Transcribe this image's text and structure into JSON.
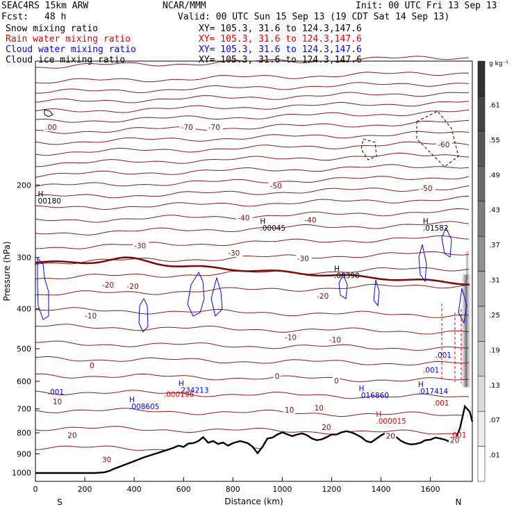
{
  "header": {
    "model": "SEAC4RS 15km ARW",
    "org": "NCAR/MMM",
    "init": "Init: 00 UTC Fri 13 Sep 13",
    "fcst_label": "Fcst:",
    "fcst_value": "48 h",
    "valid": "Valid: 00 UTC Sun 15 Sep 13 (19 CDT Sat 14 Sep 13)",
    "lines": [
      {
        "name": "Snow mixing ratio",
        "xy": "XY= 105.3, 31.6 to 124.3,147.6",
        "color": "#000000"
      },
      {
        "name": "Rain water mixing ratio",
        "xy": "XY= 105.3, 31.6 to 124.3,147.6",
        "color": "#e00000"
      },
      {
        "name": "Cloud water mixing ratio",
        "xy": "XY= 105.3, 31.6 to 124.3,147.6",
        "color": "#0000ee"
      },
      {
        "name": "Cloud ice mixing ratio",
        "xy": "XY= 105.3, 31.6 to 124.3,147.6",
        "color": "#000000"
      }
    ]
  },
  "chart_data": {
    "type": "cross-section",
    "xlabel": "Distance (km)",
    "ylabel": "Pressure (hPa)",
    "xlim": [
      0,
      1770
    ],
    "ylim": [
      1050,
      100
    ],
    "y_scale": "log-pressure",
    "x_ticks": [
      0,
      200,
      400,
      600,
      800,
      1000,
      1200,
      1400,
      1600
    ],
    "y_ticks": [
      200,
      300,
      400,
      500,
      600,
      700,
      800,
      900,
      1000
    ],
    "x_end_labels": {
      "left": "S",
      "right": "N"
    },
    "colorbar": {
      "unit": "g kg⁻¹",
      "ticks": [
        ".01",
        ".07",
        ".13",
        ".19",
        ".25",
        ".31",
        ".37",
        ".43",
        ".49",
        ".55",
        ".61"
      ]
    },
    "temperature_labels": [
      {
        "text": ".00",
        "x": 40,
        "p": 147
      },
      {
        "text": "-70",
        "x": 590,
        "p": 147
      },
      {
        "text": "-70",
        "x": 700,
        "p": 147
      },
      {
        "text": "-60",
        "x": 1630,
        "p": 162
      },
      {
        "text": "-50",
        "x": 950,
        "p": 204
      },
      {
        "text": "-50",
        "x": 1560,
        "p": 207
      },
      {
        "text": "-40",
        "x": 820,
        "p": 244
      },
      {
        "text": "-40",
        "x": 1090,
        "p": 247
      },
      {
        "text": "-30",
        "x": 400,
        "p": 285
      },
      {
        "text": "-30",
        "x": 780,
        "p": 297
      },
      {
        "text": "-30",
        "x": 1060,
        "p": 306
      },
      {
        "text": "-20",
        "x": 270,
        "p": 355
      },
      {
        "text": "-20",
        "x": 370,
        "p": 358
      },
      {
        "text": "-20",
        "x": 1140,
        "p": 378
      },
      {
        "text": "-10",
        "x": 200,
        "p": 422
      },
      {
        "text": "-10",
        "x": 1010,
        "p": 476
      },
      {
        "text": "-10",
        "x": 1190,
        "p": 483
      },
      {
        "text": "0",
        "x": 220,
        "p": 557
      },
      {
        "text": "0",
        "x": 970,
        "p": 592
      },
      {
        "text": "0",
        "x": 1210,
        "p": 607
      },
      {
        "text": "10",
        "x": 70,
        "p": 682
      },
      {
        "text": "10",
        "x": 1010,
        "p": 714
      },
      {
        "text": "10",
        "x": 1130,
        "p": 707
      },
      {
        "text": "20",
        "x": 130,
        "p": 824
      },
      {
        "text": "20",
        "x": 1160,
        "p": 788
      },
      {
        "text": "20",
        "x": 1420,
        "p": 826
      },
      {
        "text": "20",
        "x": 1680,
        "p": 846
      },
      {
        "text": "30",
        "x": 270,
        "p": 943
      }
    ],
    "max_labels": [
      {
        "marker": "H",
        "value": "00180",
        "x": 10,
        "p": 222,
        "color": "#000000"
      },
      {
        "marker": "H",
        "value": ".00045",
        "x": 910,
        "p": 258,
        "color": "#000000"
      },
      {
        "marker": "H",
        "value": ".00390",
        "x": 1210,
        "p": 337,
        "color": "#000000"
      },
      {
        "marker": "H",
        "value": ".01582",
        "x": 1570,
        "p": 258,
        "color": "#000000"
      },
      {
        "marker": "",
        "value": ".001",
        "x": 50,
        "p": 646,
        "color": "#0000ee"
      },
      {
        "marker": "H",
        "value": ".008605",
        "x": 380,
        "p": 701,
        "color": "#0000ee"
      },
      {
        "marker": "H",
        "value": ".234213",
        "x": 580,
        "p": 640,
        "color": "#0000ee"
      },
      {
        "marker": "",
        "value": ".000196",
        "x": 520,
        "p": 655,
        "color": "#e00000"
      },
      {
        "marker": "H",
        "value": ".016860",
        "x": 1310,
        "p": 658,
        "color": "#0000ee"
      },
      {
        "marker": "H",
        "value": ".017414",
        "x": 1550,
        "p": 643,
        "color": "#0000ee"
      },
      {
        "marker": "",
        "value": ".001",
        "x": 1620,
        "p": 526,
        "color": "#0000ee"
      },
      {
        "marker": "",
        "value": ".001",
        "x": 1570,
        "p": 572,
        "color": "#0000ee"
      },
      {
        "marker": "H",
        "value": ".000015",
        "x": 1380,
        "p": 760,
        "color": "#e00000"
      },
      {
        "marker": "",
        "value": ".001",
        "x": 1610,
        "p": 688,
        "color": "#e00000"
      },
      {
        "marker": "",
        "value": ".001",
        "x": 1680,
        "p": 822,
        "color": "#e00000"
      }
    ],
    "terrain_pressure": [
      [
        0,
        1002
      ],
      [
        100,
        1002
      ],
      [
        200,
        1002
      ],
      [
        240,
        1002
      ],
      [
        280,
        998
      ],
      [
        300,
        990
      ],
      [
        320,
        978
      ],
      [
        360,
        958
      ],
      [
        400,
        938
      ],
      [
        440,
        918
      ],
      [
        480,
        902
      ],
      [
        520,
        886
      ],
      [
        560,
        870
      ],
      [
        580,
        860
      ],
      [
        600,
        866
      ],
      [
        620,
        850
      ],
      [
        640,
        848
      ],
      [
        660,
        838
      ],
      [
        680,
        820
      ],
      [
        700,
        846
      ],
      [
        720,
        838
      ],
      [
        740,
        852
      ],
      [
        760,
        845
      ],
      [
        780,
        860
      ],
      [
        800,
        848
      ],
      [
        830,
        838
      ],
      [
        860,
        848
      ],
      [
        880,
        865
      ],
      [
        900,
        897
      ],
      [
        920,
        866
      ],
      [
        940,
        826
      ],
      [
        960,
        822
      ],
      [
        980,
        808
      ],
      [
        1000,
        798
      ],
      [
        1020,
        807
      ],
      [
        1040,
        815
      ],
      [
        1060,
        808
      ],
      [
        1080,
        803
      ],
      [
        1100,
        811
      ],
      [
        1120,
        826
      ],
      [
        1140,
        834
      ],
      [
        1160,
        830
      ],
      [
        1180,
        820
      ],
      [
        1200,
        808
      ],
      [
        1220,
        808
      ],
      [
        1240,
        798
      ],
      [
        1260,
        793
      ],
      [
        1280,
        798
      ],
      [
        1300,
        808
      ],
      [
        1320,
        820
      ],
      [
        1340,
        838
      ],
      [
        1360,
        844
      ],
      [
        1380,
        828
      ],
      [
        1400,
        812
      ],
      [
        1420,
        800
      ],
      [
        1440,
        808
      ],
      [
        1460,
        818
      ],
      [
        1480,
        836
      ],
      [
        1500,
        848
      ],
      [
        1520,
        854
      ],
      [
        1540,
        852
      ],
      [
        1560,
        846
      ],
      [
        1580,
        834
      ],
      [
        1600,
        832
      ],
      [
        1620,
        822
      ],
      [
        1640,
        826
      ],
      [
        1660,
        832
      ],
      [
        1680,
        842
      ],
      [
        1700,
        836
      ],
      [
        1720,
        780
      ],
      [
        1740,
        690
      ],
      [
        1760,
        712
      ],
      [
        1770,
        752
      ]
    ]
  }
}
